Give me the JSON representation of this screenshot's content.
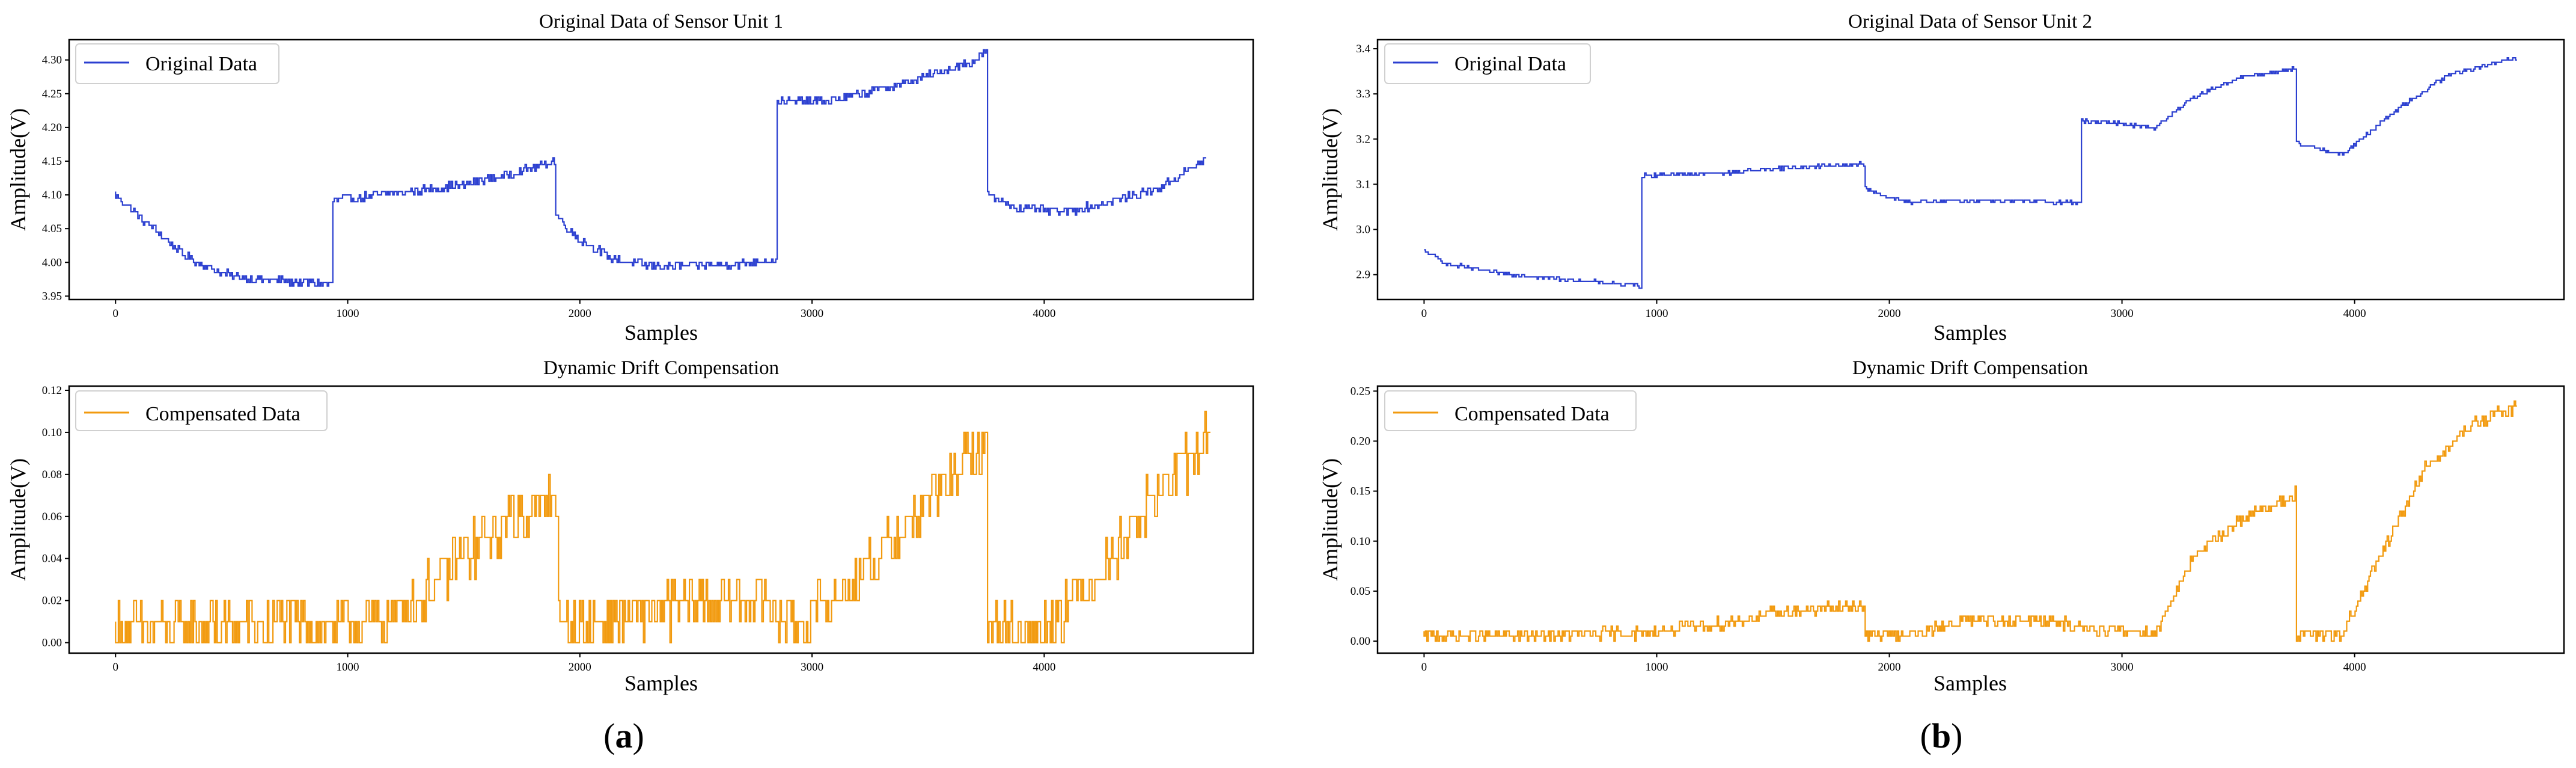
{
  "chart_data": [
    {
      "type": "line",
      "title": "Original Data of Sensor Unit 1",
      "xlabel": "Samples",
      "ylabel": "Amplitude(V)",
      "xlim": [
        -200,
        4900
      ],
      "ylim": [
        3.945,
        4.33
      ],
      "xticks": [
        0,
        1000,
        2000,
        3000,
        4000
      ],
      "yticks": [
        3.95,
        4.0,
        4.05,
        4.1,
        4.15,
        4.2,
        4.25,
        4.3
      ],
      "ytick_labels": [
        "3.95",
        "4.00",
        "4.05",
        "4.10",
        "4.15",
        "4.20",
        "4.25",
        "4.30"
      ],
      "legend": "Original Data",
      "color": "#2b3fd0",
      "noise": 0.006,
      "step": 0.005,
      "series": [
        {
          "name": "Original Data",
          "x": [
            0,
            100,
            200,
            300,
            450,
            600,
            940,
            941,
            1200,
            1500,
            1700,
            1900,
            1901,
            2000,
            2150,
            2300,
            2500,
            2700,
            2850,
            2851,
            3100,
            3400,
            3700,
            3760,
            3761,
            3900,
            4100,
            4300,
            4500,
            4700
          ],
          "y": [
            4.1,
            4.07,
            4.04,
            4.01,
            3.985,
            3.975,
            3.968,
            4.092,
            4.102,
            4.115,
            4.13,
            4.152,
            4.07,
            4.035,
            4.005,
            3.995,
            3.995,
            3.998,
            4.005,
            4.238,
            4.24,
            4.265,
            4.298,
            4.315,
            4.1,
            4.08,
            4.075,
            4.09,
            4.11,
            4.153
          ]
        }
      ]
    },
    {
      "type": "line",
      "title": "Dynamic Drift Compensation",
      "xlabel": "Samples",
      "ylabel": "Amplitude(V)",
      "xlim": [
        -200,
        4900
      ],
      "ylim": [
        -0.005,
        0.122
      ],
      "xticks": [
        0,
        1000,
        2000,
        3000,
        4000
      ],
      "yticks": [
        0.0,
        0.02,
        0.04,
        0.06,
        0.08,
        0.1,
        0.12
      ],
      "ytick_labels": [
        "0.00",
        "0.02",
        "0.04",
        "0.06",
        "0.08",
        "0.10",
        "0.12"
      ],
      "legend": "Compensated Data",
      "color": "#f29a0e",
      "noise": 0.012,
      "step": 0.01,
      "series": [
        {
          "name": "Compensated Data",
          "x": [
            0,
            300,
            600,
            900,
            1200,
            1300,
            1500,
            1700,
            1910,
            1911,
            2200,
            2500,
            2800,
            2850,
            3000,
            3200,
            3450,
            3750,
            3760,
            3761,
            4000,
            4050,
            4200,
            4400,
            4600,
            4720
          ],
          "y": [
            0.006,
            0.007,
            0.008,
            0.009,
            0.012,
            0.02,
            0.04,
            0.058,
            0.07,
            0.006,
            0.012,
            0.018,
            0.022,
            0.012,
            0.012,
            0.03,
            0.06,
            0.095,
            0.1,
            0.006,
            0.006,
            0.012,
            0.028,
            0.058,
            0.083,
            0.1
          ]
        }
      ]
    },
    {
      "type": "line",
      "title": "Original Data of Sensor Unit 2",
      "xlabel": "Samples",
      "ylabel": "Amplitude(V)",
      "xlim": [
        -200,
        4900
      ],
      "ylim": [
        2.845,
        3.42
      ],
      "xticks": [
        0,
        1000,
        2000,
        3000,
        4000
      ],
      "yticks": [
        2.9,
        3.0,
        3.1,
        3.2,
        3.3,
        3.4
      ],
      "ytick_labels": [
        "2.9",
        "3.0",
        "3.1",
        "3.2",
        "3.3",
        "3.4"
      ],
      "legend": "Original Data",
      "color": "#2b3fd0",
      "noise": 0.004,
      "step": 0.005,
      "series": [
        {
          "name": "Original Data",
          "x": [
            0,
            100,
            300,
            600,
            940,
            941,
            1300,
            1500,
            1900,
            1901,
            2000,
            2100,
            2400,
            2800,
            2830,
            2831,
            3000,
            3150,
            3300,
            3500,
            3750,
            3751,
            3850,
            3950,
            4200,
            4400,
            4700
          ],
          "y": [
            2.955,
            2.925,
            2.905,
            2.89,
            2.875,
            3.12,
            3.125,
            3.135,
            3.145,
            3.09,
            3.07,
            3.06,
            3.065,
            3.06,
            3.06,
            3.24,
            3.235,
            3.225,
            3.29,
            3.335,
            3.355,
            3.19,
            3.18,
            3.165,
            3.27,
            3.34,
            3.38
          ]
        }
      ]
    },
    {
      "type": "line",
      "title": "Dynamic Drift Compensation",
      "xlabel": "Samples",
      "ylabel": "Amplitude(V)",
      "xlim": [
        -200,
        4900
      ],
      "ylim": [
        -0.012,
        0.255
      ],
      "xticks": [
        0,
        1000,
        2000,
        3000,
        4000
      ],
      "yticks": [
        0.0,
        0.05,
        0.1,
        0.15,
        0.2,
        0.25
      ],
      "ytick_labels": [
        "0.00",
        "0.05",
        "0.10",
        "0.15",
        "0.20",
        "0.25"
      ],
      "legend": "Compensated Data",
      "color": "#f29a0e",
      "noise": 0.006,
      "step": 0.005,
      "series": [
        {
          "name": "Compensated Data",
          "x": [
            0,
            500,
            940,
            1300,
            1500,
            1880,
            1900,
            1901,
            2150,
            2300,
            2600,
            2900,
            3150,
            3300,
            3500,
            3740,
            3750,
            3751,
            3950,
            4000,
            4150,
            4300,
            4500,
            4700
          ],
          "y": [
            0.005,
            0.006,
            0.008,
            0.018,
            0.028,
            0.035,
            0.035,
            0.006,
            0.008,
            0.02,
            0.022,
            0.012,
            0.008,
            0.08,
            0.12,
            0.145,
            0.152,
            0.006,
            0.006,
            0.03,
            0.1,
            0.17,
            0.215,
            0.235
          ]
        }
      ]
    }
  ],
  "panel_labels": {
    "a_letter": "a",
    "b_letter": "b",
    "open_paren": "(",
    "close_paren": ")"
  }
}
